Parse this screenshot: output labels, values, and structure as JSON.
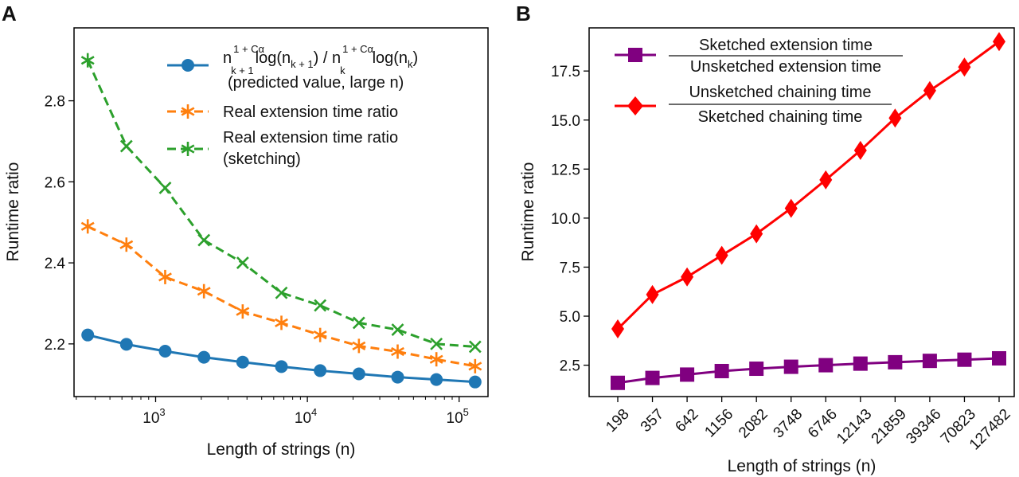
{
  "panels": {
    "a": {
      "letter": "A"
    },
    "b": {
      "letter": "B"
    }
  },
  "chart_data": [
    {
      "type": "line",
      "panel": "A",
      "xlabel": "Length of strings (n)",
      "ylabel": "Runtime ratio",
      "xscale": "log",
      "xlim": [
        290,
        155000
      ],
      "ylim": [
        2.07,
        2.98
      ],
      "xticks": [
        {
          "value": 1000,
          "base": "10",
          "exp": "3"
        },
        {
          "value": 10000,
          "base": "10",
          "exp": "4"
        },
        {
          "value": 100000,
          "base": "10",
          "exp": "5"
        }
      ],
      "yticks": [
        {
          "value": 2.2,
          "label": "2.2"
        },
        {
          "value": 2.4,
          "label": "2.4"
        },
        {
          "value": 2.6,
          "label": "2.6"
        },
        {
          "value": 2.8,
          "label": "2.8"
        }
      ],
      "x": [
        357,
        642,
        1156,
        2082,
        3748,
        6746,
        12143,
        21859,
        39346,
        70823,
        127482
      ],
      "legend_position": "top-right",
      "series": [
        {
          "key": "predicted",
          "name_parts": {
            "n": "n",
            "sub1": "k + 1",
            "sup": "1 + Cα",
            "log1": "log(n",
            "log1_sub": "k + 1",
            "close1": ") / n",
            "sub2": "k",
            "log2": "log(n",
            "log2_sub": "k",
            "close2": ")"
          },
          "name_line2": "(predicted value, large n)",
          "color": "#1f77b4",
          "marker": "circle",
          "linestyle": "solid",
          "values": [
            2.222,
            2.199,
            2.182,
            2.167,
            2.155,
            2.144,
            2.134,
            2.126,
            2.118,
            2.112,
            2.106
          ]
        },
        {
          "key": "real",
          "name": "Real extension time ratio",
          "color": "#ff7f0e",
          "marker": "star",
          "linestyle": "dashed",
          "values": [
            2.49,
            2.445,
            2.365,
            2.33,
            2.28,
            2.252,
            2.222,
            2.195,
            2.181,
            2.162,
            2.145
          ]
        },
        {
          "key": "sketch",
          "name": "Real extension time ratio",
          "name_line2": "(sketching)",
          "color": "#2ca02c",
          "marker": "star",
          "linestyle": "dashed",
          "values": [
            2.9,
            2.688,
            2.585,
            2.456,
            2.4,
            2.326,
            2.295,
            2.252,
            2.235,
            2.2,
            2.193
          ]
        }
      ]
    },
    {
      "type": "line",
      "panel": "B",
      "xlabel": "Length of strings (n)",
      "ylabel": "Runtime ratio",
      "categories": [
        "198",
        "357",
        "642",
        "1156",
        "2082",
        "3748",
        "6746",
        "12143",
        "21859",
        "39346",
        "70823",
        "127482"
      ],
      "ylim": [
        0.9,
        19.7
      ],
      "yticks": [
        {
          "value": 2.5,
          "label": "2.5"
        },
        {
          "value": 5.0,
          "label": "5.0"
        },
        {
          "value": 7.5,
          "label": "7.5"
        },
        {
          "value": 10.0,
          "label": "10.0"
        },
        {
          "value": 12.5,
          "label": "12.5"
        },
        {
          "value": 15.0,
          "label": "15.0"
        },
        {
          "value": 17.5,
          "label": "17.5"
        }
      ],
      "legend_position": "top-left",
      "series": [
        {
          "key": "sketched",
          "name_numerator": "Sketched extension time",
          "name_denominator": "Unsketched extension time",
          "color": "#800080",
          "marker": "square",
          "values": [
            1.6,
            1.85,
            2.02,
            2.2,
            2.32,
            2.42,
            2.5,
            2.58,
            2.65,
            2.72,
            2.78,
            2.85
          ]
        },
        {
          "key": "chaining",
          "name_numerator": "Unsketched chaining time",
          "name_denominator": "Sketched chaining time",
          "color": "#ff0000",
          "marker": "diamond",
          "values": [
            4.35,
            6.1,
            7.0,
            8.1,
            9.2,
            10.5,
            11.95,
            13.45,
            15.1,
            16.5,
            17.7,
            19.0
          ]
        }
      ]
    }
  ]
}
